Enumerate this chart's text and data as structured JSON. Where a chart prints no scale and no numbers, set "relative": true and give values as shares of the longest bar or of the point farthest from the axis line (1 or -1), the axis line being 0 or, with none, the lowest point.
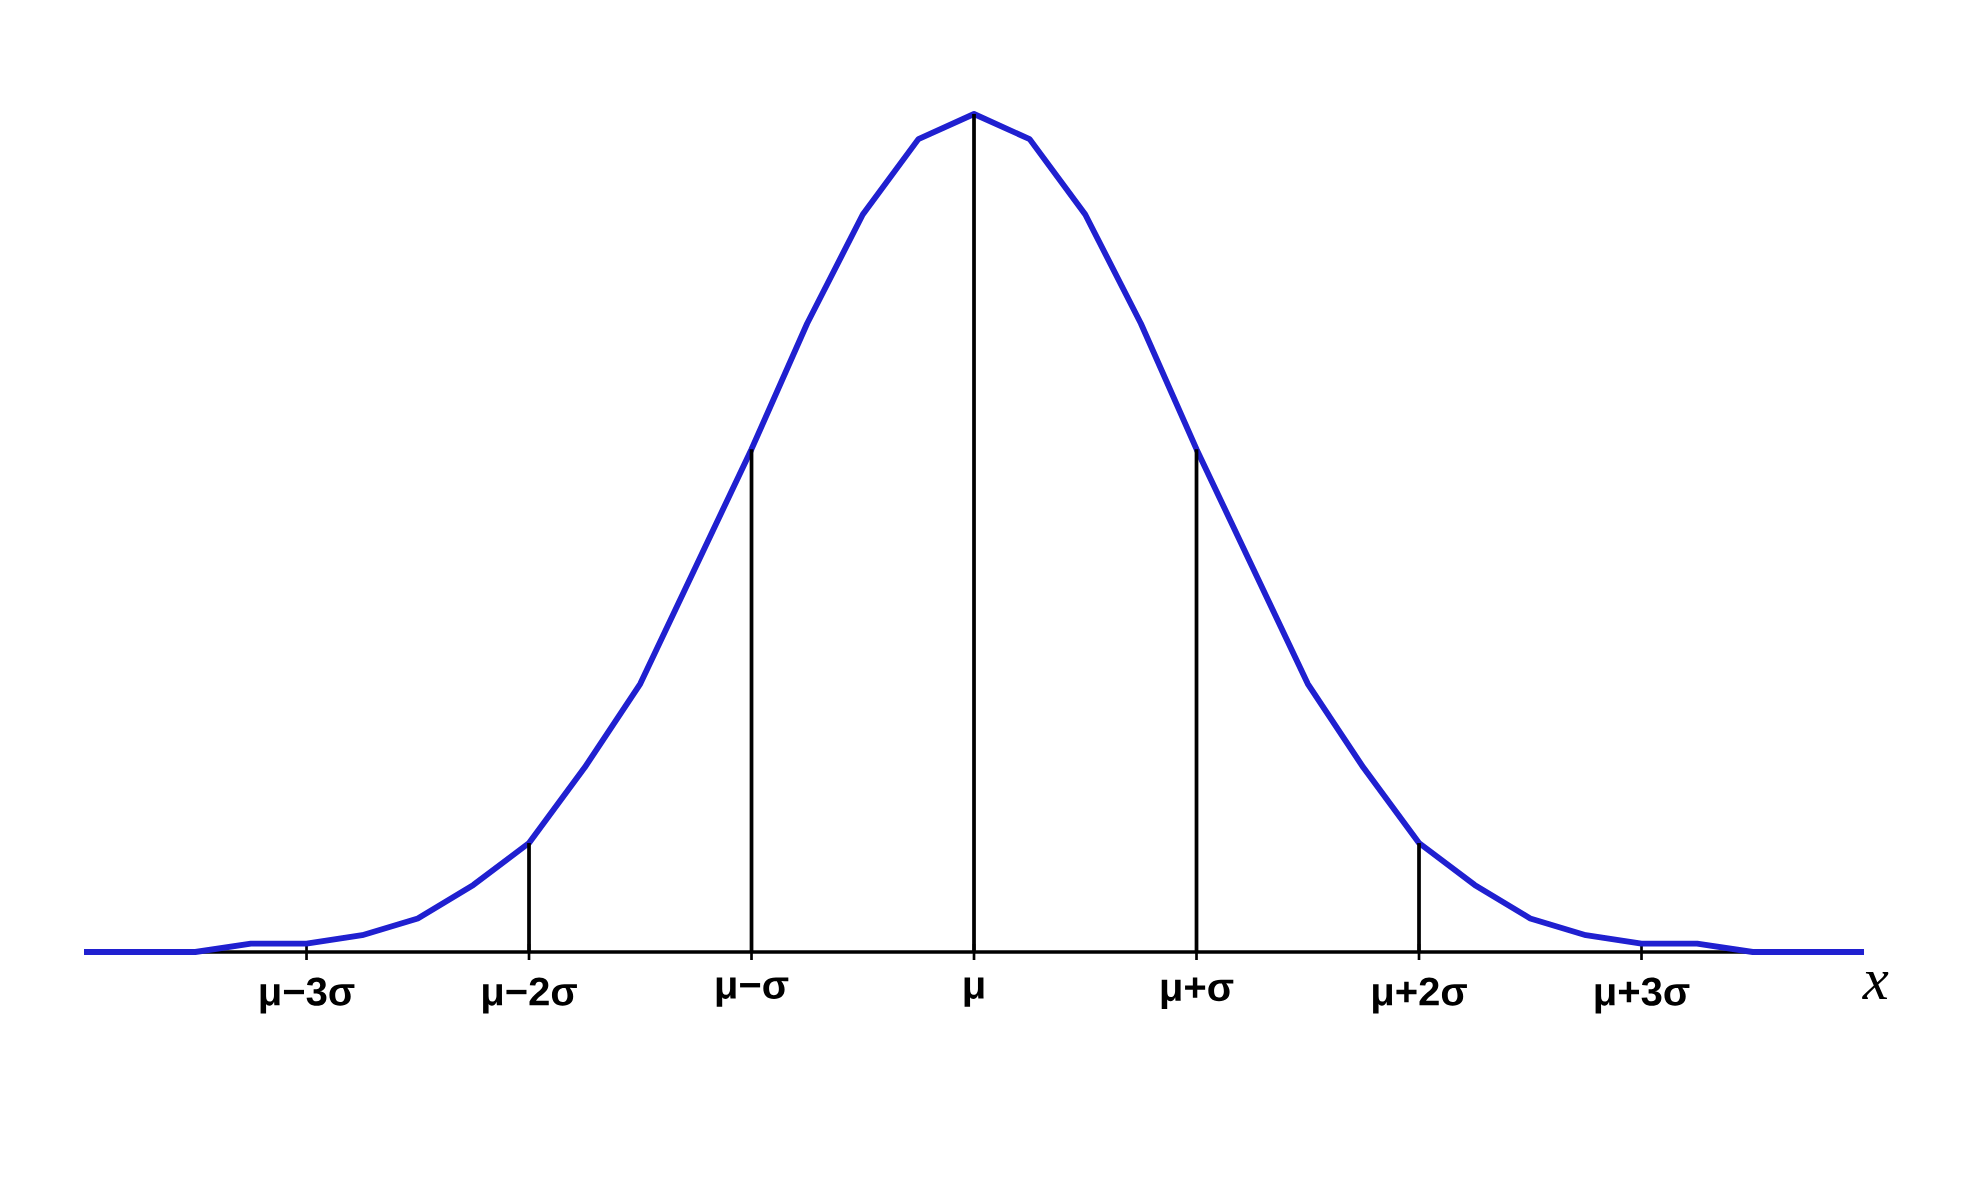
{
  "chart_data": {
    "type": "line",
    "relative": true,
    "xlabel": "x",
    "categories": [
      null,
      null,
      null,
      null,
      "μ−3σ",
      null,
      null,
      null,
      "μ−2σ",
      null,
      null,
      null,
      "μ−σ",
      null,
      null,
      null,
      "μ",
      null,
      null,
      null,
      "μ+σ",
      null,
      null,
      null,
      "μ+2σ",
      null,
      null,
      null,
      "μ+3σ",
      null,
      null,
      null,
      null
    ],
    "series": [
      {
        "color": "#2020d0",
        "values": [
          0,
          0,
          0,
          0.01,
          0.01,
          0.02,
          0.04,
          0.08,
          0.13,
          0.22,
          0.32,
          0.46,
          0.6,
          0.75,
          0.88,
          0.97,
          1,
          0.97,
          0.88,
          0.75,
          0.6,
          0.46,
          0.32,
          0.22,
          0.13,
          0.08,
          0.04,
          0.02,
          0.01,
          0.01,
          0,
          0,
          0
        ]
      },
      {
        "type": "bar",
        "color": "#000000",
        "values": [
          null,
          null,
          null,
          null,
          null,
          null,
          null,
          null,
          0.13,
          null,
          null,
          null,
          0.6,
          null,
          null,
          null,
          1,
          null,
          null,
          null,
          0.6,
          null,
          null,
          null,
          0.13,
          null,
          null,
          null,
          null,
          null,
          null,
          null,
          null
        ]
      }
    ]
  }
}
